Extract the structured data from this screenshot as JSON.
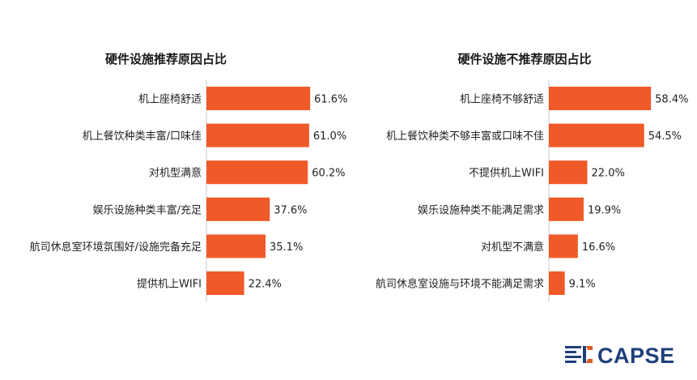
{
  "brand": {
    "name": "CAPSE",
    "primary_color": "#1f3f7a",
    "accent_color": "#e05a2b"
  },
  "bar_color": "#f05a28",
  "chart_data": [
    {
      "type": "bar",
      "orientation": "horizontal",
      "title": "硬件设施推荐原因占比",
      "categories": [
        "机上座椅舒适",
        "机上餐饮种类丰富/口味佳",
        "对机型满意",
        "娱乐设施种类丰富/充足",
        "航司休息室环境氛围好/设施完备充足",
        "提供机上WIFI"
      ],
      "values": [
        61.6,
        61.0,
        60.2,
        37.6,
        35.1,
        22.4
      ],
      "value_labels": [
        "61.6%",
        "61.0%",
        "60.2%",
        "37.6%",
        "35.1%",
        "22.4%"
      ],
      "unit": "%"
    },
    {
      "type": "bar",
      "orientation": "horizontal",
      "title": "硬件设施不推荐原因占比",
      "categories": [
        "机上座椅不够舒适",
        "机上餐饮种类不够丰富或口味不佳",
        "不提供机上WIFI",
        "娱乐设施种类不能满足需求",
        "对机型不满意",
        "航司休息室设施与环境不能满足需求"
      ],
      "values": [
        58.4,
        54.5,
        22.0,
        19.9,
        16.6,
        9.1
      ],
      "value_labels": [
        "58.4%",
        "54.5%",
        "22.0%",
        "19.9%",
        "16.6%",
        "9.1%"
      ],
      "unit": "%"
    }
  ]
}
